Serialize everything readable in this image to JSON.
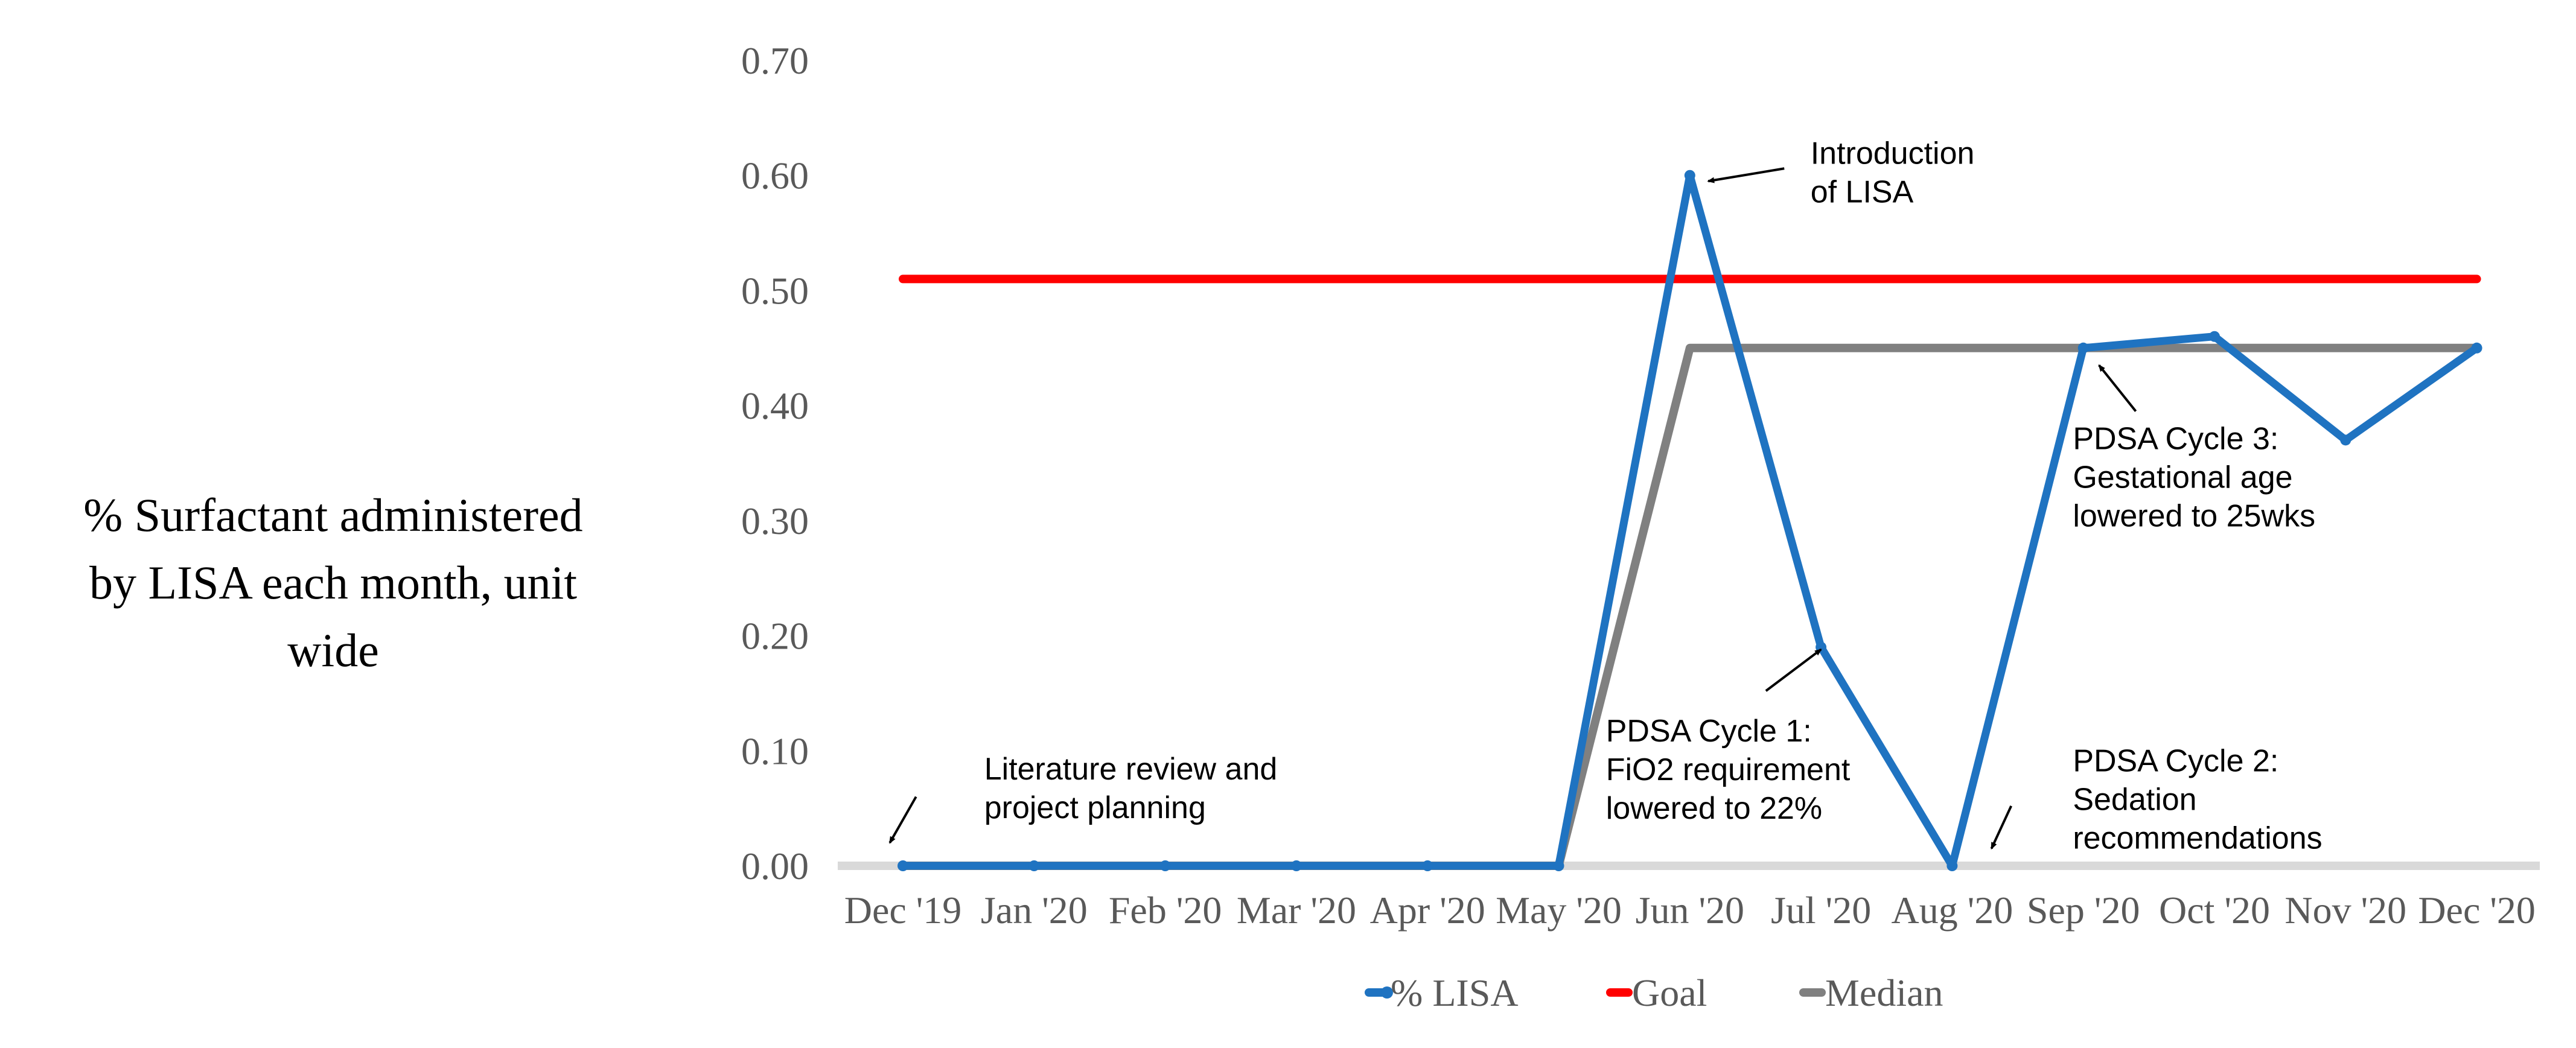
{
  "chart_data": {
    "type": "line",
    "ylabel": "% Surfactant administered by LISA each month, unit wide",
    "ylabel_lines": [
      "% Surfactant administered",
      "by LISA each month, unit",
      "wide"
    ],
    "ylim": [
      0,
      0.7
    ],
    "yticks": [
      0,
      0.1,
      0.2,
      0.3,
      0.4,
      0.5,
      0.6,
      0.7
    ],
    "ytick_labels": [
      "0.00",
      "0.10",
      "0.20",
      "0.30",
      "0.40",
      "0.50",
      "0.60",
      "0.70"
    ],
    "categories": [
      "Dec '19",
      "Jan '20",
      "Feb '20",
      "Mar '20",
      "Apr '20",
      "May '20",
      "Jun '20",
      "Jul '20",
      "Aug '20",
      "Sep '20",
      "Oct '20",
      "Nov '20",
      "Dec '20"
    ],
    "grid": false,
    "legend_position": "bottom",
    "series": [
      {
        "name": "% LISA",
        "color": "#1f73c1",
        "marker": true,
        "values": [
          0,
          0,
          0,
          0,
          0,
          0,
          0.6,
          0.19,
          0,
          0.45,
          0.46,
          0.37,
          0.45
        ]
      },
      {
        "name": "Goal",
        "color": "#ff0000",
        "marker": false,
        "values": [
          0.51,
          0.51,
          0.51,
          0.51,
          0.51,
          0.51,
          0.51,
          0.51,
          0.51,
          0.51,
          0.51,
          0.51,
          0.51
        ]
      },
      {
        "name": "Median",
        "color": "#808080",
        "marker": false,
        "values": [
          0,
          0,
          0,
          0,
          0,
          0,
          0.45,
          0.45,
          0.45,
          0.45,
          0.45,
          0.45,
          0.45
        ]
      }
    ],
    "annotations": [
      {
        "lines": [
          "Literature review and",
          "project planning"
        ],
        "text_x": 0.62,
        "text_y": 0.075,
        "arrow_from": [
          0.1,
          0.06
        ],
        "arrow_to": [
          -0.1,
          0.02
        ]
      },
      {
        "lines": [
          "Introduction",
          "of LISA"
        ],
        "text_x": 6.92,
        "text_y": 0.61,
        "arrow_from": [
          6.72,
          0.606
        ],
        "arrow_to": [
          6.14,
          0.595
        ]
      },
      {
        "lines": [
          "PDSA Cycle 1:",
          "FiO2 requirement",
          "lowered to 22%"
        ],
        "text_x": 5.36,
        "text_y": 0.108,
        "arrow_from": [
          6.58,
          0.152
        ],
        "arrow_to": [
          7.0,
          0.188
        ]
      },
      {
        "lines": [
          "PDSA Cycle 3:",
          "Gestational age",
          "lowered to 25wks"
        ],
        "text_x": 8.92,
        "text_y": 0.362,
        "arrow_from": [
          9.4,
          0.395
        ],
        "arrow_to": [
          9.12,
          0.435
        ]
      },
      {
        "lines": [
          "PDSA Cycle 2:",
          "Sedation",
          "recommendations"
        ],
        "text_x": 8.92,
        "text_y": 0.082,
        "arrow_from": [
          8.45,
          0.052
        ],
        "arrow_to": [
          8.3,
          0.015
        ]
      }
    ]
  }
}
